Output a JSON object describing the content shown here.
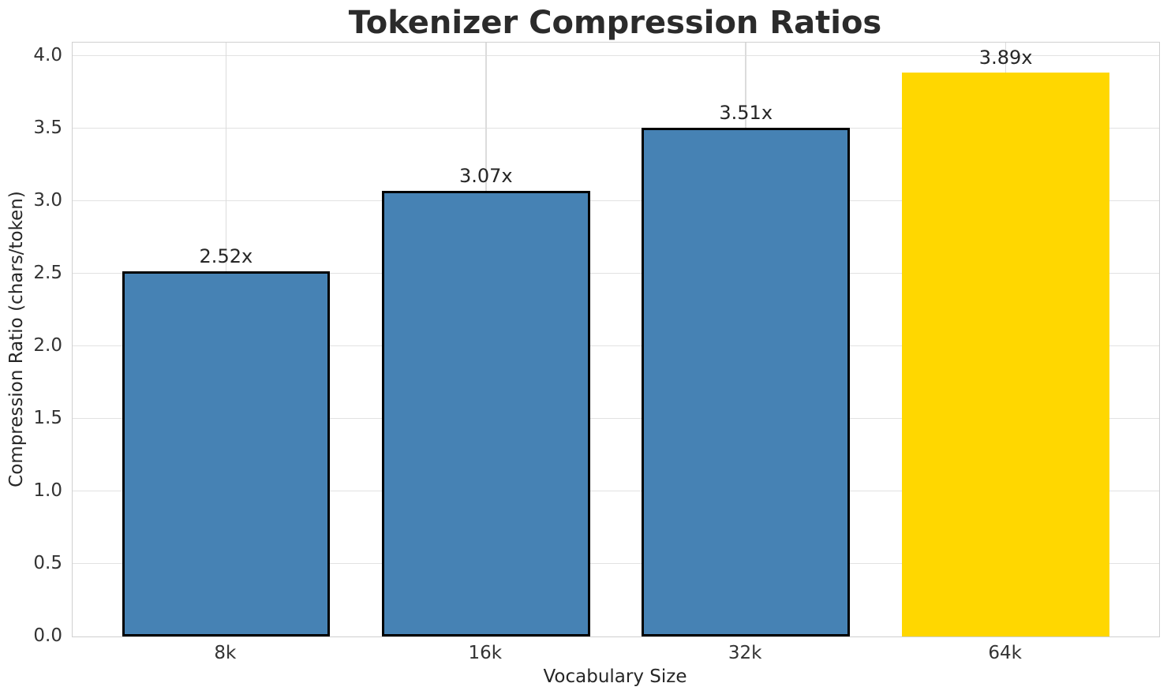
{
  "chart_data": {
    "type": "bar",
    "title": "Tokenizer Compression Ratios",
    "xlabel": "Vocabulary Size",
    "ylabel": "Compression Ratio (chars/token)",
    "categories": [
      "8k",
      "16k",
      "32k",
      "64k"
    ],
    "values": [
      2.52,
      3.07,
      3.51,
      3.89
    ],
    "value_labels": [
      "2.52x",
      "3.07x",
      "3.51x",
      "3.89x"
    ],
    "ylim": [
      0,
      4.095
    ],
    "ytick_values": [
      0.0,
      0.5,
      1.0,
      1.5,
      2.0,
      2.5,
      3.0,
      3.5,
      4.0
    ],
    "ytick_labels": [
      "0.0",
      "0.5",
      "1.0",
      "1.5",
      "2.0",
      "2.5",
      "3.0",
      "3.5",
      "4.0"
    ],
    "grid": true,
    "legend_position": "none",
    "bar_color": "#4682B4",
    "bar_edge_color": "#000000",
    "highlight_index": 3,
    "highlight_color": "#FFD700",
    "text_color": "#262626",
    "grid_color": "#e2e2e2",
    "spine_color": "#d0d0d0"
  }
}
